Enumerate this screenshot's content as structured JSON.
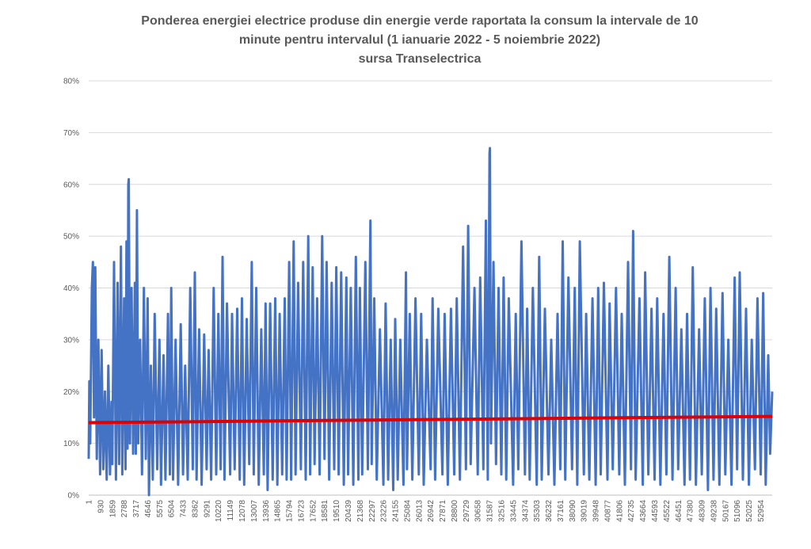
{
  "chart_data": {
    "type": "line",
    "title_lines": [
      "Ponderea energiei electrice produse din energie verde raportata la consum la intervale de 10",
      "minute pentru intervalul (1 ianuarie 2022 - 5 noiembrie 2022)",
      "sursa Transelectrica"
    ],
    "xlabel": "",
    "ylabel": "",
    "ylim": [
      0,
      0.8
    ],
    "y_ticks": [
      0,
      0.1,
      0.2,
      0.3,
      0.4,
      0.5,
      0.6,
      0.7,
      0.8
    ],
    "y_tick_labels": [
      "0%",
      "10%",
      "20%",
      "30%",
      "40%",
      "50%",
      "60%",
      "70%",
      "80%"
    ],
    "xlim": [
      1,
      53860
    ],
    "x_tick_labels": [
      "1",
      "930",
      "1859",
      "2788",
      "3717",
      "4646",
      "5575",
      "6504",
      "7433",
      "8362",
      "9291",
      "10220",
      "11149",
      "12078",
      "13007",
      "13936",
      "14865",
      "15794",
      "16723",
      "17652",
      "18581",
      "19510",
      "20439",
      "21368",
      "22297",
      "23226",
      "24155",
      "25084",
      "26013",
      "26942",
      "27871",
      "28800",
      "29729",
      "30658",
      "31587",
      "32516",
      "33445",
      "34374",
      "35303",
      "36232",
      "37161",
      "38090",
      "39019",
      "39948",
      "40877",
      "41806",
      "42735",
      "43664",
      "44593",
      "45522",
      "46451",
      "47380",
      "48309",
      "49238",
      "50167",
      "51096",
      "52025",
      "52954"
    ],
    "x_tick_values": [
      1,
      930,
      1859,
      2788,
      3717,
      4646,
      5575,
      6504,
      7433,
      8362,
      9291,
      10220,
      11149,
      12078,
      13007,
      13936,
      14865,
      15794,
      16723,
      17652,
      18581,
      19510,
      20439,
      21368,
      22297,
      23226,
      24155,
      25084,
      26013,
      26942,
      27871,
      28800,
      29729,
      30658,
      31587,
      32516,
      33445,
      34374,
      35303,
      36232,
      37161,
      38090,
      39019,
      39948,
      40877,
      41806,
      42735,
      43664,
      44593,
      45522,
      46451,
      47380,
      48309,
      49238,
      50167,
      51096,
      52025,
      52954
    ],
    "series": [
      {
        "color": "#4472C4",
        "points": [
          [
            1,
            0.07
          ],
          [
            50,
            0.22
          ],
          [
            120,
            0.1
          ],
          [
            250,
            0.4
          ],
          [
            330,
            0.45
          ],
          [
            420,
            0.15
          ],
          [
            520,
            0.44
          ],
          [
            640,
            0.07
          ],
          [
            760,
            0.3
          ],
          [
            900,
            0.04
          ],
          [
            1020,
            0.28
          ],
          [
            1150,
            0.05
          ],
          [
            1280,
            0.2
          ],
          [
            1420,
            0.03
          ],
          [
            1550,
            0.25
          ],
          [
            1680,
            0.04
          ],
          [
            1800,
            0.18
          ],
          [
            1859,
            0.06
          ],
          [
            2000,
            0.45
          ],
          [
            2150,
            0.03
          ],
          [
            2280,
            0.41
          ],
          [
            2400,
            0.06
          ],
          [
            2540,
            0.48
          ],
          [
            2650,
            0.04
          ],
          [
            2788,
            0.38
          ],
          [
            2900,
            0.05
          ],
          [
            2980,
            0.49
          ],
          [
            3060,
            0.09
          ],
          [
            3120,
            0.6
          ],
          [
            3160,
            0.61
          ],
          [
            3250,
            0.1
          ],
          [
            3380,
            0.4
          ],
          [
            3500,
            0.08
          ],
          [
            3640,
            0.41
          ],
          [
            3717,
            0.08
          ],
          [
            3800,
            0.55
          ],
          [
            3900,
            0.1
          ],
          [
            4050,
            0.3
          ],
          [
            4200,
            0.04
          ],
          [
            4350,
            0.4
          ],
          [
            4500,
            0.07
          ],
          [
            4646,
            0.38
          ],
          [
            4750,
            0.0
          ],
          [
            4900,
            0.25
          ],
          [
            5050,
            0.03
          ],
          [
            5200,
            0.35
          ],
          [
            5400,
            0.05
          ],
          [
            5575,
            0.3
          ],
          [
            5700,
            0.02
          ],
          [
            5900,
            0.27
          ],
          [
            6050,
            0.03
          ],
          [
            6250,
            0.35
          ],
          [
            6400,
            0.04
          ],
          [
            6504,
            0.4
          ],
          [
            6650,
            0.03
          ],
          [
            6850,
            0.3
          ],
          [
            7050,
            0.02
          ],
          [
            7250,
            0.33
          ],
          [
            7433,
            0.04
          ],
          [
            7600,
            0.25
          ],
          [
            7800,
            0.03
          ],
          [
            8000,
            0.4
          ],
          [
            8200,
            0.05
          ],
          [
            8362,
            0.43
          ],
          [
            8500,
            0.03
          ],
          [
            8700,
            0.32
          ],
          [
            8900,
            0.02
          ],
          [
            9100,
            0.31
          ],
          [
            9291,
            0.05
          ],
          [
            9450,
            0.28
          ],
          [
            9650,
            0.03
          ],
          [
            9850,
            0.4
          ],
          [
            10050,
            0.04
          ],
          [
            10220,
            0.35
          ],
          [
            10400,
            0.05
          ],
          [
            10550,
            0.46
          ],
          [
            10700,
            0.03
          ],
          [
            10900,
            0.37
          ],
          [
            11149,
            0.04
          ],
          [
            11300,
            0.35
          ],
          [
            11500,
            0.05
          ],
          [
            11700,
            0.36
          ],
          [
            11900,
            0.03
          ],
          [
            12078,
            0.38
          ],
          [
            12250,
            0.02
          ],
          [
            12450,
            0.34
          ],
          [
            12650,
            0.06
          ],
          [
            12850,
            0.45
          ],
          [
            13007,
            0.04
          ],
          [
            13200,
            0.4
          ],
          [
            13400,
            0.02
          ],
          [
            13600,
            0.32
          ],
          [
            13800,
            0.04
          ],
          [
            13936,
            0.37
          ],
          [
            14100,
            0.01
          ],
          [
            14300,
            0.37
          ],
          [
            14500,
            0.03
          ],
          [
            14700,
            0.38
          ],
          [
            14865,
            0.02
          ],
          [
            15050,
            0.35
          ],
          [
            15250,
            0.04
          ],
          [
            15450,
            0.38
          ],
          [
            15600,
            0.03
          ],
          [
            15794,
            0.45
          ],
          [
            15950,
            0.03
          ],
          [
            16150,
            0.49
          ],
          [
            16300,
            0.04
          ],
          [
            16500,
            0.41
          ],
          [
            16723,
            0.05
          ],
          [
            16900,
            0.45
          ],
          [
            17100,
            0.03
          ],
          [
            17300,
            0.5
          ],
          [
            17450,
            0.04
          ],
          [
            17652,
            0.44
          ],
          [
            17800,
            0.06
          ],
          [
            18000,
            0.38
          ],
          [
            18200,
            0.04
          ],
          [
            18400,
            0.5
          ],
          [
            18581,
            0.07
          ],
          [
            18750,
            0.45
          ],
          [
            18950,
            0.03
          ],
          [
            19150,
            0.41
          ],
          [
            19350,
            0.05
          ],
          [
            19510,
            0.44
          ],
          [
            19700,
            0.04
          ],
          [
            19900,
            0.43
          ],
          [
            20100,
            0.02
          ],
          [
            20300,
            0.42
          ],
          [
            20439,
            0.04
          ],
          [
            20650,
            0.4
          ],
          [
            20850,
            0.02
          ],
          [
            21050,
            0.46
          ],
          [
            21250,
            0.03
          ],
          [
            21368,
            0.4
          ],
          [
            21550,
            0.04
          ],
          [
            21800,
            0.45
          ],
          [
            22000,
            0.05
          ],
          [
            22200,
            0.53
          ],
          [
            22297,
            0.06
          ],
          [
            22500,
            0.38
          ],
          [
            22700,
            0.03
          ],
          [
            22950,
            0.32
          ],
          [
            23226,
            0.02
          ],
          [
            23400,
            0.37
          ],
          [
            23600,
            0.03
          ],
          [
            23800,
            0.3
          ],
          [
            24000,
            0.01
          ],
          [
            24155,
            0.34
          ],
          [
            24350,
            0.03
          ],
          [
            24550,
            0.3
          ],
          [
            24800,
            0.02
          ],
          [
            25000,
            0.43
          ],
          [
            25084,
            0.05
          ],
          [
            25300,
            0.35
          ],
          [
            25500,
            0.03
          ],
          [
            25750,
            0.38
          ],
          [
            26013,
            0.04
          ],
          [
            26200,
            0.35
          ],
          [
            26400,
            0.02
          ],
          [
            26650,
            0.3
          ],
          [
            26942,
            0.05
          ],
          [
            27100,
            0.38
          ],
          [
            27300,
            0.03
          ],
          [
            27550,
            0.36
          ],
          [
            27871,
            0.04
          ],
          [
            28050,
            0.35
          ],
          [
            28300,
            0.02
          ],
          [
            28550,
            0.36
          ],
          [
            28800,
            0.04
          ],
          [
            29000,
            0.38
          ],
          [
            29250,
            0.03
          ],
          [
            29500,
            0.48
          ],
          [
            29729,
            0.05
          ],
          [
            29900,
            0.52
          ],
          [
            30100,
            0.06
          ],
          [
            30400,
            0.4
          ],
          [
            30658,
            0.04
          ],
          [
            30850,
            0.42
          ],
          [
            31100,
            0.05
          ],
          [
            31300,
            0.53
          ],
          [
            31450,
            0.03
          ],
          [
            31587,
            0.66
          ],
          [
            31620,
            0.67
          ],
          [
            31700,
            0.1
          ],
          [
            31900,
            0.45
          ],
          [
            32100,
            0.06
          ],
          [
            32300,
            0.4
          ],
          [
            32516,
            0.04
          ],
          [
            32700,
            0.42
          ],
          [
            32900,
            0.03
          ],
          [
            33100,
            0.38
          ],
          [
            33445,
            0.02
          ],
          [
            33650,
            0.35
          ],
          [
            33850,
            0.05
          ],
          [
            34100,
            0.49
          ],
          [
            34374,
            0.04
          ],
          [
            34550,
            0.36
          ],
          [
            34750,
            0.03
          ],
          [
            35000,
            0.4
          ],
          [
            35303,
            0.02
          ],
          [
            35500,
            0.46
          ],
          [
            35700,
            0.03
          ],
          [
            35950,
            0.36
          ],
          [
            36232,
            0.04
          ],
          [
            36450,
            0.3
          ],
          [
            36700,
            0.02
          ],
          [
            36950,
            0.35
          ],
          [
            37161,
            0.05
          ],
          [
            37350,
            0.49
          ],
          [
            37550,
            0.03
          ],
          [
            37800,
            0.42
          ],
          [
            38090,
            0.05
          ],
          [
            38300,
            0.4
          ],
          [
            38500,
            0.02
          ],
          [
            38700,
            0.49
          ],
          [
            39019,
            0.04
          ],
          [
            39200,
            0.35
          ],
          [
            39450,
            0.03
          ],
          [
            39700,
            0.38
          ],
          [
            39948,
            0.02
          ],
          [
            40150,
            0.4
          ],
          [
            40350,
            0.04
          ],
          [
            40600,
            0.41
          ],
          [
            40877,
            0.03
          ],
          [
            41050,
            0.37
          ],
          [
            41300,
            0.05
          ],
          [
            41550,
            0.4
          ],
          [
            41806,
            0.04
          ],
          [
            42000,
            0.35
          ],
          [
            42250,
            0.02
          ],
          [
            42500,
            0.45
          ],
          [
            42735,
            0.05
          ],
          [
            42900,
            0.51
          ],
          [
            43100,
            0.03
          ],
          [
            43400,
            0.38
          ],
          [
            43664,
            0.02
          ],
          [
            43850,
            0.43
          ],
          [
            44100,
            0.04
          ],
          [
            44350,
            0.36
          ],
          [
            44593,
            0.03
          ],
          [
            44800,
            0.38
          ],
          [
            45050,
            0.02
          ],
          [
            45300,
            0.35
          ],
          [
            45522,
            0.04
          ],
          [
            45750,
            0.46
          ],
          [
            46000,
            0.03
          ],
          [
            46250,
            0.4
          ],
          [
            46451,
            0.05
          ],
          [
            46700,
            0.32
          ],
          [
            46950,
            0.02
          ],
          [
            47150,
            0.35
          ],
          [
            47380,
            0.03
          ],
          [
            47600,
            0.44
          ],
          [
            47850,
            0.02
          ],
          [
            48100,
            0.32
          ],
          [
            48309,
            0.04
          ],
          [
            48550,
            0.38
          ],
          [
            48800,
            0.01
          ],
          [
            49000,
            0.4
          ],
          [
            49238,
            0.03
          ],
          [
            49450,
            0.36
          ],
          [
            49700,
            0.02
          ],
          [
            49950,
            0.39
          ],
          [
            50167,
            0.04
          ],
          [
            50400,
            0.3
          ],
          [
            50650,
            0.02
          ],
          [
            50900,
            0.42
          ],
          [
            51096,
            0.05
          ],
          [
            51300,
            0.43
          ],
          [
            51550,
            0.03
          ],
          [
            51800,
            0.36
          ],
          [
            52025,
            0.02
          ],
          [
            52250,
            0.3
          ],
          [
            52500,
            0.05
          ],
          [
            52700,
            0.38
          ],
          [
            52954,
            0.04
          ],
          [
            53150,
            0.39
          ],
          [
            53350,
            0.02
          ],
          [
            53550,
            0.27
          ],
          [
            53700,
            0.08
          ],
          [
            53860,
            0.2
          ]
        ]
      },
      {
        "color": "#E00000",
        "type": "trendline",
        "points": [
          [
            1,
            0.14
          ],
          [
            53860,
            0.152
          ]
        ]
      }
    ],
    "grid": true,
    "legend": "none"
  }
}
